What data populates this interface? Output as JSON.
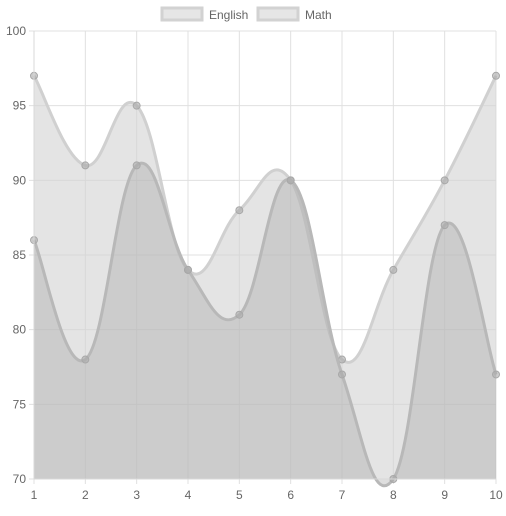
{
  "chart_data": {
    "type": "area",
    "title": "",
    "xlabel": "",
    "ylabel": "",
    "x": [
      1,
      2,
      3,
      4,
      5,
      6,
      7,
      8,
      9,
      10
    ],
    "ylim": [
      70,
      100
    ],
    "yticks": [
      70,
      75,
      80,
      85,
      90,
      95,
      100
    ],
    "grid": true,
    "legend_position": "top",
    "series": [
      {
        "name": "English",
        "values": [
          97,
          91,
          95,
          84,
          88,
          90,
          78,
          84,
          90,
          97
        ],
        "color": "#d0d0d0",
        "fill": "rgba(210,210,210,0.6)"
      },
      {
        "name": "Math",
        "values": [
          86,
          78,
          91,
          84,
          81,
          90,
          77,
          70,
          87,
          77
        ],
        "color": "#b8b8b8",
        "fill": "rgba(160,160,160,0.35)"
      }
    ]
  }
}
